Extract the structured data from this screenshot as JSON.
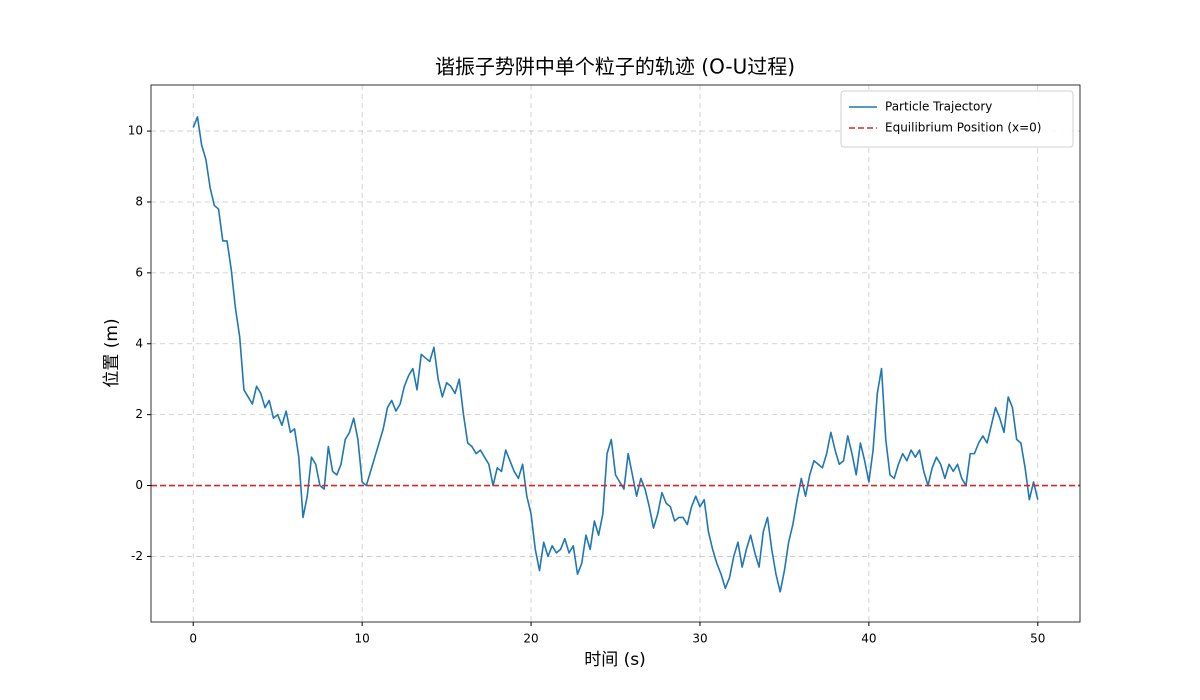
{
  "chart_data": {
    "type": "line",
    "title": "谐振子势阱中单个粒子的轨迹 (O-U过程)",
    "xlabel": "时间 (s)",
    "ylabel": "位置 (m)",
    "x": [
      0,
      0.25,
      0.5,
      0.75,
      1,
      1.25,
      1.5,
      1.75,
      2,
      2.25,
      2.5,
      2.75,
      3,
      3.25,
      3.5,
      3.75,
      4,
      4.25,
      4.5,
      4.75,
      5,
      5.25,
      5.5,
      5.75,
      6,
      6.25,
      6.5,
      6.75,
      7,
      7.25,
      7.5,
      7.75,
      8,
      8.25,
      8.5,
      8.75,
      9,
      9.25,
      9.5,
      9.75,
      10,
      10.25,
      10.5,
      10.75,
      11,
      11.25,
      11.5,
      11.75,
      12,
      12.25,
      12.5,
      12.75,
      13,
      13.25,
      13.5,
      13.75,
      14,
      14.25,
      14.5,
      14.75,
      15,
      15.25,
      15.5,
      15.75,
      16,
      16.25,
      16.5,
      16.75,
      17,
      17.25,
      17.5,
      17.75,
      18,
      18.25,
      18.5,
      18.75,
      19,
      19.25,
      19.5,
      19.75,
      20,
      20.25,
      20.5,
      20.75,
      21,
      21.25,
      21.5,
      21.75,
      22,
      22.25,
      22.5,
      22.75,
      23,
      23.25,
      23.5,
      23.75,
      24,
      24.25,
      24.5,
      24.75,
      25,
      25.25,
      25.5,
      25.75,
      26,
      26.25,
      26.5,
      26.75,
      27,
      27.25,
      27.5,
      27.75,
      28,
      28.25,
      28.5,
      28.75,
      29,
      29.25,
      29.5,
      29.75,
      30,
      30.25,
      30.5,
      30.75,
      31,
      31.25,
      31.5,
      31.75,
      32,
      32.25,
      32.5,
      32.75,
      33,
      33.25,
      33.5,
      33.75,
      34,
      34.25,
      34.5,
      34.75,
      35,
      35.25,
      35.5,
      35.75,
      36,
      36.25,
      36.5,
      36.75,
      37,
      37.25,
      37.5,
      37.75,
      38,
      38.25,
      38.5,
      38.75,
      39,
      39.25,
      39.5,
      39.75,
      40,
      40.25,
      40.5,
      40.75,
      41,
      41.25,
      41.5,
      41.75,
      42,
      42.25,
      42.5,
      42.75,
      43,
      43.25,
      43.5,
      43.75,
      44,
      44.25,
      44.5,
      44.75,
      45,
      45.25,
      45.5,
      45.75,
      46,
      46.25,
      46.5,
      46.75,
      47,
      47.25,
      47.5,
      47.75,
      48,
      48.25,
      48.5,
      48.75,
      49,
      49.25,
      49.5,
      49.75,
      50
    ],
    "series": [
      {
        "name": "Particle Trajectory",
        "color": "#1f77b4",
        "values": [
          10.1,
          10.4,
          9.6,
          9.2,
          8.4,
          7.9,
          7.8,
          6.9,
          6.9,
          6.1,
          5.0,
          4.2,
          2.7,
          2.5,
          2.3,
          2.8,
          2.6,
          2.2,
          2.4,
          1.9,
          2.0,
          1.7,
          2.1,
          1.5,
          1.6,
          0.8,
          -0.9,
          -0.3,
          0.8,
          0.6,
          0.0,
          -0.1,
          1.1,
          0.4,
          0.3,
          0.6,
          1.3,
          1.5,
          1.9,
          1.3,
          0.1,
          0.0,
          0.4,
          0.8,
          1.2,
          1.6,
          2.2,
          2.4,
          2.1,
          2.3,
          2.8,
          3.1,
          3.3,
          2.7,
          3.7,
          3.6,
          3.5,
          3.9,
          3.0,
          2.5,
          2.9,
          2.8,
          2.6,
          3.0,
          2.0,
          1.2,
          1.1,
          0.9,
          1.0,
          0.8,
          0.6,
          0.0,
          0.5,
          0.4,
          1.0,
          0.7,
          0.4,
          0.2,
          0.6,
          -0.3,
          -0.8,
          -1.8,
          -2.4,
          -1.6,
          -2.0,
          -1.7,
          -1.9,
          -1.8,
          -1.5,
          -1.9,
          -1.7,
          -2.5,
          -2.2,
          -1.4,
          -1.8,
          -1.0,
          -1.4,
          -0.8,
          0.9,
          1.3,
          0.3,
          0.1,
          -0.1,
          0.9,
          0.3,
          -0.3,
          0.2,
          -0.1,
          -0.6,
          -1.2,
          -0.8,
          -0.2,
          -0.5,
          -0.6,
          -1.0,
          -0.9,
          -0.9,
          -1.1,
          -0.6,
          -0.3,
          -0.6,
          -0.4,
          -1.3,
          -1.8,
          -2.2,
          -2.5,
          -2.9,
          -2.6,
          -2.0,
          -1.6,
          -2.3,
          -1.8,
          -1.4,
          -1.9,
          -2.3,
          -1.3,
          -0.9,
          -1.8,
          -2.5,
          -3.0,
          -2.4,
          -1.6,
          -1.1,
          -0.4,
          0.2,
          -0.3,
          0.3,
          0.7,
          0.6,
          0.5,
          0.9,
          1.5,
          1.0,
          0.6,
          0.7,
          1.4,
          0.9,
          0.3,
          1.2,
          0.7,
          0.1,
          1.0,
          2.6,
          3.3,
          1.3,
          0.3,
          0.2,
          0.6,
          0.9,
          0.7,
          1.0,
          0.8,
          1.0,
          0.4,
          0.0,
          0.5,
          0.8,
          0.6,
          0.2,
          0.6,
          0.4,
          0.6,
          0.2,
          0.0,
          0.9,
          0.9,
          1.2,
          1.4,
          1.2,
          1.7,
          2.2,
          1.9,
          1.5,
          2.5,
          2.2,
          1.3,
          1.2,
          0.5,
          -0.4,
          0.1,
          -0.4
        ]
      }
    ],
    "reference_line": {
      "name": "Equilibrium Position (x=0)",
      "value": 0,
      "color": "#d62728",
      "style": "dashed"
    },
    "xlim": [
      -2.5,
      52.5
    ],
    "xticks": [
      0,
      10,
      20,
      30,
      40,
      50
    ],
    "ylim": [
      -3.85,
      11.3
    ],
    "yticks": [
      -2,
      0,
      2,
      4,
      6,
      8,
      10
    ],
    "grid": true,
    "legend": "upper right"
  }
}
